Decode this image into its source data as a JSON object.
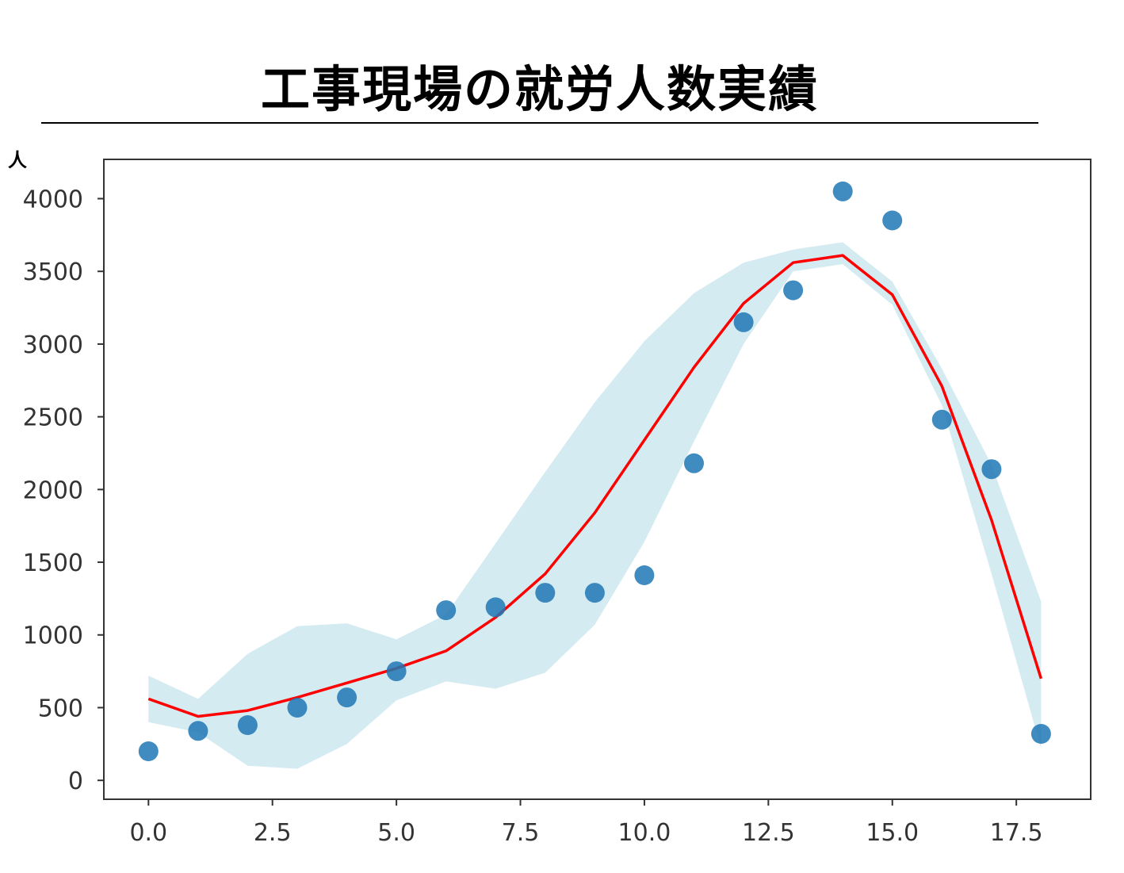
{
  "title": "工事現場の就労人数実績",
  "chart_data": {
    "type": "scatter",
    "title": "工事現場の就労人数実績",
    "ylabel": "人",
    "xlabel": "",
    "xlim": [
      -0.9,
      19.0
    ],
    "ylim": [
      -130,
      4270
    ],
    "xticks": [
      0.0,
      2.5,
      5.0,
      7.5,
      10.0,
      12.5,
      15.0,
      17.5
    ],
    "xtick_labels": [
      "0.0",
      "2.5",
      "5.0",
      "7.5",
      "10.0",
      "12.5",
      "15.0",
      "17.5"
    ],
    "yticks": [
      0,
      500,
      1000,
      1500,
      2000,
      2500,
      3000,
      3500,
      4000
    ],
    "ytick_labels": [
      "0",
      "500",
      "1000",
      "1500",
      "2000",
      "2500",
      "3000",
      "3500",
      "4000"
    ],
    "grid": false,
    "points": {
      "x": [
        0,
        1,
        2,
        3,
        4,
        5,
        6,
        7,
        8,
        9,
        10,
        11,
        12,
        13,
        14,
        15,
        16,
        17,
        18
      ],
      "y": [
        200,
        340,
        380,
        500,
        570,
        750,
        1170,
        1190,
        1290,
        1290,
        1410,
        2180,
        3150,
        3370,
        4050,
        3850,
        2480,
        2140,
        320
      ],
      "color": "#1f77b4"
    },
    "fit_line": {
      "x": [
        0,
        1,
        2,
        3,
        4,
        5,
        6,
        7,
        8,
        9,
        10,
        11,
        12,
        13,
        14,
        15,
        16,
        17,
        18
      ],
      "y": [
        560,
        440,
        480,
        570,
        670,
        770,
        890,
        1120,
        1420,
        1840,
        2340,
        2840,
        3280,
        3560,
        3610,
        3340,
        2710,
        1790,
        700
      ],
      "color": "#ff0000"
    },
    "band": {
      "x": [
        0,
        1,
        2,
        3,
        4,
        5,
        6,
        7,
        8,
        9,
        10,
        11,
        12,
        13,
        14,
        15,
        16,
        17,
        18
      ],
      "lower": [
        400,
        330,
        100,
        80,
        250,
        550,
        680,
        630,
        740,
        1070,
        1640,
        2330,
        3000,
        3500,
        3550,
        3270,
        2580,
        1420,
        220
      ],
      "upper": [
        720,
        560,
        870,
        1060,
        1080,
        970,
        1140,
        1630,
        2120,
        2600,
        3020,
        3350,
        3560,
        3650,
        3700,
        3430,
        2830,
        2170,
        1230
      ],
      "color": "#d4ebf2"
    }
  }
}
